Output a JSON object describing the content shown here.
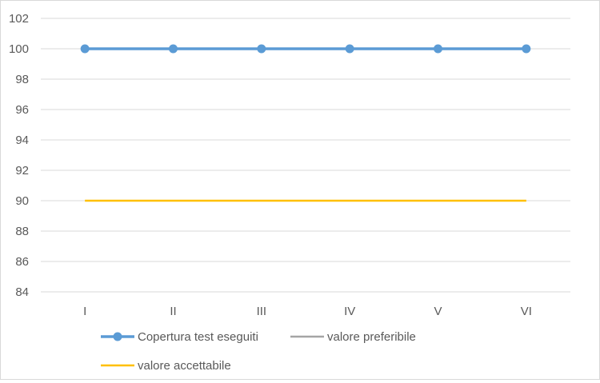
{
  "chart_data": {
    "type": "line",
    "categories": [
      "I",
      "II",
      "III",
      "IV",
      "V",
      "VI"
    ],
    "series": [
      {
        "name": "Copertura test eseguiti",
        "values": [
          100,
          100,
          100,
          100,
          100,
          100
        ],
        "color": "#5b9bd5",
        "markers": true
      },
      {
        "name": "valore preferibile",
        "values": [
          100,
          100,
          100,
          100,
          100,
          100
        ],
        "color": "#a5a5a5",
        "markers": false
      },
      {
        "name": "valore accettabile",
        "values": [
          90,
          90,
          90,
          90,
          90,
          90
        ],
        "color": "#ffc000",
        "markers": false
      }
    ],
    "ylim": [
      84,
      102
    ],
    "yticks": [
      84,
      86,
      88,
      90,
      92,
      94,
      96,
      98,
      100,
      102
    ],
    "grid": true,
    "legend_position": "bottom"
  }
}
